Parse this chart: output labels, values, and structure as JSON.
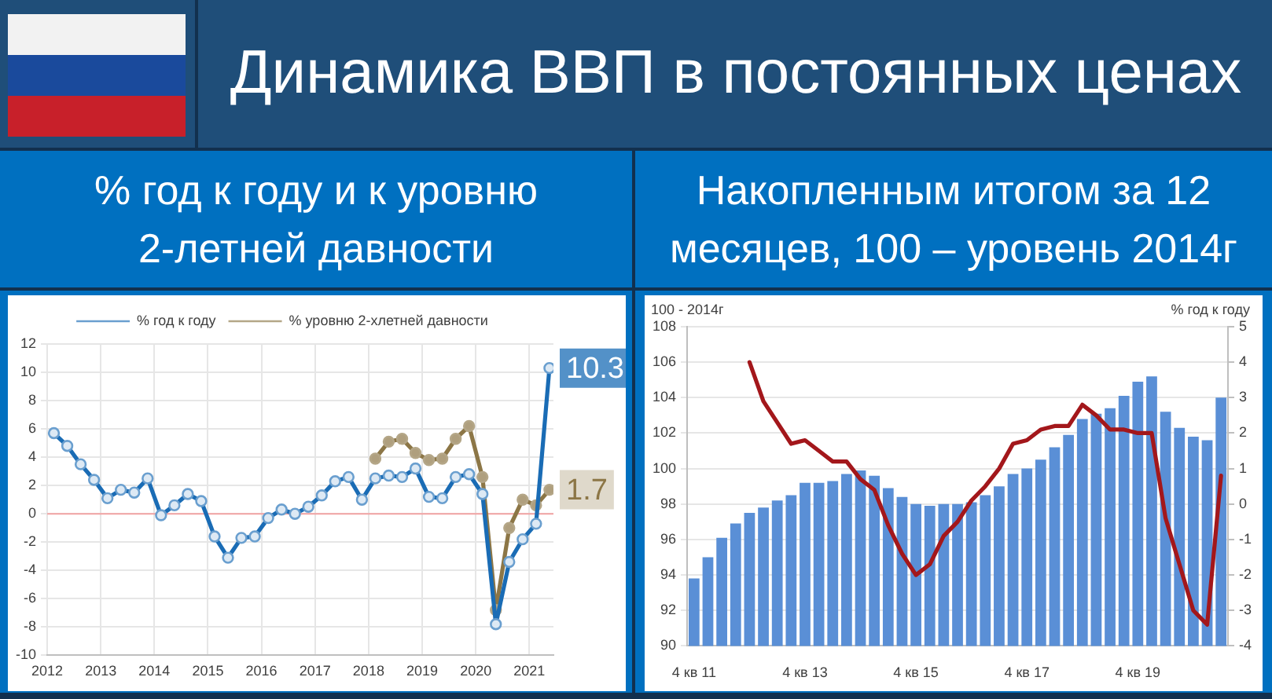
{
  "chart_data": [
    {
      "type": "line",
      "title": "Динамика ВВП в постоянных ценах",
      "subtitle": "% год к году и к уровню 2-летней давности",
      "x": [
        2012.125,
        2012.375,
        2012.625,
        2012.875,
        2013.125,
        2013.375,
        2013.625,
        2013.875,
        2014.125,
        2014.375,
        2014.625,
        2014.875,
        2015.125,
        2015.375,
        2015.625,
        2015.875,
        2016.125,
        2016.375,
        2016.625,
        2016.875,
        2017.125,
        2017.375,
        2017.625,
        2017.875,
        2018.125,
        2018.375,
        2018.625,
        2018.875,
        2019.125,
        2019.375,
        2019.625,
        2019.875,
        2020.125,
        2020.375,
        2020.625,
        2020.875,
        2021.125,
        2021.375
      ],
      "xlim": [
        2012,
        2021.45
      ],
      "xticks": [
        2012,
        2013,
        2014,
        2015,
        2016,
        2017,
        2018,
        2019,
        2020,
        2021
      ],
      "ylim": [
        -10,
        12
      ],
      "yticks": [
        -10,
        -8,
        -6,
        -4,
        -2,
        0,
        2,
        4,
        6,
        8,
        10,
        12
      ],
      "series": [
        {
          "name": "% год к году",
          "color": "#1a6cb5",
          "values": [
            5.7,
            4.8,
            3.5,
            2.4,
            1.1,
            1.7,
            1.5,
            2.5,
            -0.1,
            0.6,
            1.4,
            0.9,
            -1.6,
            -3.1,
            -1.7,
            -1.6,
            -0.3,
            0.3,
            0.0,
            0.5,
            1.3,
            2.3,
            2.6,
            1.0,
            2.5,
            2.7,
            2.6,
            3.2,
            1.2,
            1.1,
            2.6,
            2.8,
            1.4,
            -7.8,
            -3.4,
            -1.8,
            -0.7,
            10.3
          ],
          "value_labels": [
            null,
            null,
            null,
            null,
            null,
            null,
            null,
            null,
            null,
            null,
            null,
            null,
            null,
            null,
            null,
            null,
            null,
            null,
            null,
            null,
            null,
            null,
            null,
            null,
            null,
            null,
            null,
            null,
            null,
            null,
            null,
            null,
            null,
            null,
            null,
            null,
            null,
            "10.3"
          ]
        },
        {
          "name": "% уровню 2-хлетней давности",
          "color": "#8c7646",
          "values": [
            null,
            null,
            null,
            null,
            null,
            null,
            null,
            null,
            null,
            null,
            null,
            null,
            null,
            null,
            null,
            null,
            null,
            null,
            null,
            null,
            null,
            null,
            null,
            null,
            3.9,
            5.1,
            5.3,
            4.3,
            3.8,
            3.9,
            5.3,
            6.2,
            2.6,
            -6.8,
            -1.0,
            1.0,
            0.6,
            1.7
          ],
          "value_labels": [
            null,
            null,
            null,
            null,
            null,
            null,
            null,
            null,
            null,
            null,
            null,
            null,
            null,
            null,
            null,
            null,
            null,
            null,
            null,
            null,
            null,
            null,
            null,
            null,
            null,
            null,
            null,
            null,
            null,
            null,
            null,
            null,
            null,
            null,
            null,
            null,
            null,
            "1.7"
          ]
        }
      ],
      "ref_lines": [
        {
          "axis": "y",
          "value": 0,
          "color": "#f2a3a3"
        }
      ],
      "grid": true,
      "legend": "top",
      "marker": "circle"
    },
    {
      "type": "bar",
      "subtitle": "Накопленным итогом за 12 месяцев, 100 – уровень 2014г",
      "categories": [
        "4 кв 11",
        null,
        null,
        null,
        null,
        null,
        null,
        null,
        "4 кв 13",
        null,
        null,
        null,
        null,
        null,
        null,
        null,
        "4 кв 15",
        null,
        null,
        null,
        null,
        null,
        null,
        null,
        "4 кв 17",
        null,
        null,
        null,
        null,
        null,
        null,
        null,
        "4 кв 19",
        null,
        null,
        null,
        null,
        null,
        null
      ],
      "ylabel": "100 - 2014г",
      "y2label": "% год к году",
      "ylim": [
        90,
        108
      ],
      "yticks": [
        90,
        92,
        94,
        96,
        98,
        100,
        102,
        104,
        106,
        108
      ],
      "y2lim": [
        -4,
        5
      ],
      "y2ticks": [
        -4,
        -3,
        -2,
        -1,
        0,
        1,
        2,
        3,
        4,
        5
      ],
      "series": [
        {
          "color": "#5a8fd6",
          "values": [
            93.8,
            95.0,
            96.1,
            96.9,
            97.5,
            97.8,
            98.2,
            98.5,
            99.2,
            99.2,
            99.3,
            99.7,
            99.9,
            99.6,
            98.9,
            98.4,
            98.0,
            97.9,
            98.0,
            98.0,
            98.1,
            98.5,
            99.0,
            99.7,
            100.0,
            100.5,
            101.2,
            101.9,
            102.8,
            103.1,
            103.4,
            104.1,
            104.9,
            105.2,
            103.2,
            102.3,
            101.8,
            101.6,
            104.0
          ]
        },
        {
          "type": "line",
          "axis": "y2",
          "color": "#a3171b",
          "values": [
            null,
            null,
            null,
            null,
            4.0,
            2.9,
            2.3,
            1.7,
            1.8,
            1.5,
            1.2,
            1.2,
            0.7,
            0.4,
            -0.6,
            -1.4,
            -2.0,
            -1.7,
            -0.9,
            -0.5,
            0.1,
            0.5,
            1.0,
            1.7,
            1.8,
            2.1,
            2.2,
            2.2,
            2.8,
            2.5,
            2.1,
            2.1,
            2.0,
            2.0,
            -0.4,
            -1.7,
            -3.0,
            -3.4,
            0.8
          ]
        }
      ],
      "grid": "y"
    }
  ]
}
